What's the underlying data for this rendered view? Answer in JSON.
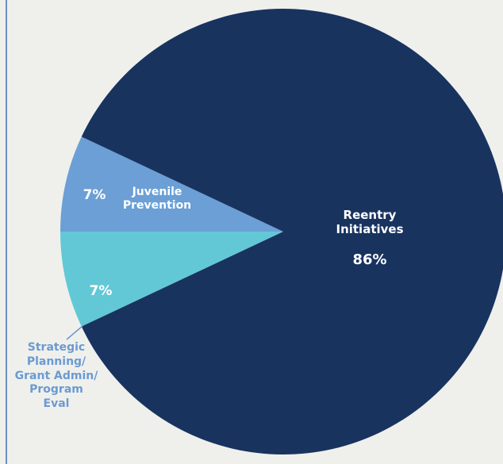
{
  "chart_data": {
    "type": "pie",
    "title": "",
    "slices": [
      {
        "label": "Reentry Initiatives",
        "value": 86,
        "value_label": "86%",
        "color": "#19335f"
      },
      {
        "label": "Juvenile Prevention",
        "value": 7,
        "value_label": "7%",
        "color": "#63c8d6"
      },
      {
        "label": "Strategic Planning/ Grant Admin/ Program Eval",
        "value": 7,
        "value_label": "7%",
        "color": "#6b9fd6"
      }
    ]
  },
  "labels": {
    "reentry_line1": "Reentry",
    "reentry_line2": "Initiatives",
    "reentry_pct": "86%",
    "juvenile_line1": "Juvenile",
    "juvenile_line2": "Prevention",
    "juvenile_pct": "7%",
    "strategic_line1": "Strategic",
    "strategic_line2": "Planning/",
    "strategic_line3": "Grant Admin/",
    "strategic_line4": "Program",
    "strategic_line5": "Eval",
    "strategic_pct": "7%"
  }
}
